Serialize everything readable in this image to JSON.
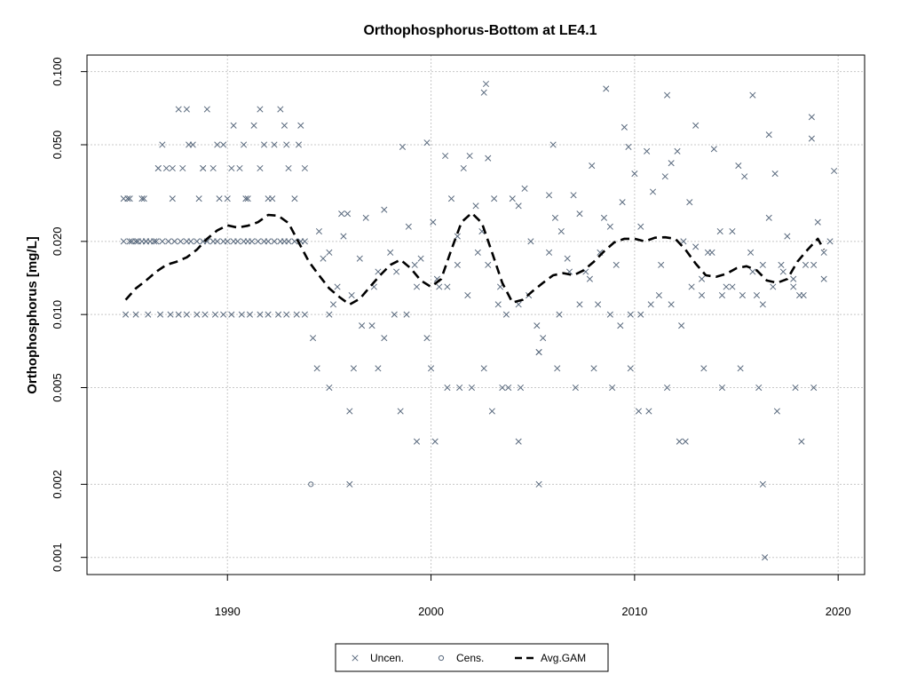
{
  "chart_data": {
    "type": "scatter",
    "title": "Orthophosphorus-Bottom at LE4.1",
    "xlabel": "",
    "ylabel": "Orthophosphorus [mg/L]",
    "y_scale": "log",
    "xlim": [
      1983.1,
      2021.3
    ],
    "ylim": [
      0.00085,
      0.117
    ],
    "grid": true,
    "x_ticks": [
      {
        "value": 1990,
        "label": "1990"
      },
      {
        "value": 2000,
        "label": "2000"
      },
      {
        "value": 2010,
        "label": "2010"
      },
      {
        "value": 2020,
        "label": "2020"
      }
    ],
    "y_ticks": [
      {
        "value": 0.001,
        "label": "0.001"
      },
      {
        "value": 0.002,
        "label": "0.002"
      },
      {
        "value": 0.005,
        "label": "0.005"
      },
      {
        "value": 0.01,
        "label": "0.010"
      },
      {
        "value": 0.02,
        "label": "0.020"
      },
      {
        "value": 0.05,
        "label": "0.050"
      },
      {
        "value": 0.1,
        "label": "0.100"
      }
    ],
    "legend": {
      "position": "bottom",
      "entries": [
        {
          "label": "Uncen.",
          "symbol": "x"
        },
        {
          "label": "Cens.",
          "symbol": "circle"
        },
        {
          "label": "Avg.GAM",
          "symbol": "dashed-line"
        }
      ]
    },
    "colors": {
      "points": "#5a6a7e",
      "gam": "#000000",
      "grid": "#c8c8c8"
    },
    "series": [
      {
        "name": "Uncen.",
        "kind": "points",
        "x": [
          1984.9,
          1985.1,
          1985.3,
          1985.6,
          1985.8,
          1986.0,
          1986.4,
          1986.6,
          1986.8,
          1987.0,
          1987.3,
          1987.6,
          1987.8,
          1988.0,
          1988.3,
          1988.6,
          1988.8,
          1989.0,
          1989.3,
          1989.6,
          1989.8,
          1990.0,
          1990.3,
          1990.6,
          1990.8,
          1991.0,
          1991.3,
          1991.6,
          1991.8,
          1992.0,
          1992.3,
          1992.6,
          1992.8,
          1993.0,
          1993.3,
          1993.6,
          1993.8,
          1984.9,
          1985.2,
          1985.5,
          1985.8,
          1986.0,
          1986.2,
          1986.5,
          1986.8,
          1987.1,
          1987.4,
          1987.7,
          1988.0,
          1988.2,
          1988.5,
          1988.8,
          1989.0,
          1989.3,
          1989.5,
          1989.8,
          1990.0,
          1990.3,
          1990.5,
          1990.8,
          1991.0,
          1991.2,
          1991.5,
          1991.8,
          1992.0,
          1992.3,
          1992.6,
          1992.8,
          1993.0,
          1993.3,
          1993.6,
          1993.8,
          1985.0,
          1985.5,
          1986.1,
          1986.7,
          1987.2,
          1987.6,
          1988.0,
          1988.5,
          1988.9,
          1989.4,
          1989.8,
          1990.2,
          1990.7,
          1991.1,
          1991.6,
          1992.0,
          1992.5,
          1992.9,
          1993.4,
          1993.8,
          1985.2,
          1985.9,
          1986.6,
          1987.3,
          1988.1,
          1988.8,
          1989.5,
          1990.2,
          1990.9,
          1991.6,
          1992.2,
          1992.9,
          1993.5,
          1994.2,
          1994.4,
          1994.7,
          1995.0,
          1995.2,
          1995.4,
          1995.7,
          1995.9,
          1996.2,
          1996.5,
          1996.8,
          1997.1,
          1997.4,
          1997.7,
          1998.0,
          1998.3,
          1998.6,
          1998.9,
          1999.2,
          1999.5,
          1999.8,
          2000.1,
          2000.4,
          2000.7,
          2001.0,
          2001.3,
          2001.6,
          2001.9,
          2002.2,
          2002.5,
          2002.8,
          2003.1,
          2003.4,
          2003.7,
          2004.0,
          2004.3,
          2004.6,
          2004.9,
          2005.2,
          2005.5,
          2005.8,
          2006.1,
          2006.4,
          2006.7,
          2007.0,
          2007.3,
          2007.6,
          2007.9,
          2008.2,
          2008.5,
          2008.8,
          2009.1,
          2009.4,
          2009.7,
          2010.0,
          2010.3,
          2010.6,
          2010.9,
          2011.2,
          2011.5,
          2011.8,
          2012.1,
          2012.4,
          2012.7,
          2013.0,
          2013.3,
          2013.6,
          2013.9,
          2014.2,
          2014.5,
          2014.8,
          2015.1,
          2015.4,
          2015.7,
          2016.0,
          2016.3,
          2016.6,
          2016.9,
          2017.2,
          2017.5,
          2017.8,
          2018.1,
          2018.4,
          2018.7,
          2019.0,
          2019.3,
          2019.6,
          2019.8,
          1994.5,
          1995.0,
          1995.6,
          1996.1,
          1996.6,
          1997.2,
          1997.7,
          1998.2,
          1998.8,
          1999.3,
          1999.8,
          2000.3,
          2000.8,
          2001.3,
          2001.8,
          2002.3,
          2002.8,
          2003.3,
          2003.8,
          2004.3,
          2004.8,
          2005.3,
          2005.8,
          2006.3,
          2006.8,
          2007.3,
          2007.8,
          2008.3,
          2008.8,
          2009.3,
          2009.8,
          2010.3,
          2010.8,
          2011.3,
          2011.8,
          2012.3,
          2012.8,
          2013.3,
          2013.8,
          2014.3,
          2014.8,
          2015.3,
          2015.8,
          2016.3,
          2016.8,
          2017.3,
          2017.8,
          2018.3,
          2018.8,
          2019.3,
          1995.0,
          1996.0,
          1997.4,
          1998.5,
          2000.0,
          2000.8,
          2001.4,
          2002.0,
          2002.6,
          2003.5,
          2004.4,
          2005.3,
          2006.2,
          2007.1,
          2008.0,
          2008.9,
          2009.8,
          2010.7,
          2011.6,
          2012.5,
          2013.4,
          2014.3,
          2015.2,
          2016.1,
          2017.0,
          2017.9,
          2018.8,
          1996.0,
          1999.3,
          2000.2,
          2003.0,
          2004.3,
          2005.3,
          2010.2,
          2012.2,
          2016.3,
          2016.4,
          2018.2,
          2002.6,
          2002.7,
          2008.6,
          2011.6,
          2015.8,
          2009.5,
          2006.0,
          2013.0,
          2016.6,
          2018.7
        ],
        "y": [
          0.03,
          0.03,
          0.02,
          0.02,
          0.03,
          0.02,
          0.02,
          0.04,
          0.05,
          0.04,
          0.03,
          0.07,
          0.04,
          0.07,
          0.05,
          0.03,
          0.04,
          0.07,
          0.04,
          0.03,
          0.05,
          0.03,
          0.06,
          0.04,
          0.05,
          0.03,
          0.06,
          0.07,
          0.05,
          0.03,
          0.05,
          0.07,
          0.06,
          0.04,
          0.03,
          0.06,
          0.04,
          0.02,
          0.02,
          0.02,
          0.02,
          0.02,
          0.02,
          0.02,
          0.02,
          0.02,
          0.02,
          0.02,
          0.02,
          0.02,
          0.02,
          0.02,
          0.02,
          0.02,
          0.02,
          0.02,
          0.02,
          0.02,
          0.02,
          0.02,
          0.02,
          0.02,
          0.02,
          0.02,
          0.02,
          0.02,
          0.02,
          0.02,
          0.02,
          0.02,
          0.02,
          0.02,
          0.01,
          0.01,
          0.01,
          0.01,
          0.01,
          0.01,
          0.01,
          0.01,
          0.01,
          0.01,
          0.01,
          0.01,
          0.01,
          0.01,
          0.01,
          0.01,
          0.01,
          0.01,
          0.01,
          0.01,
          0.03,
          0.03,
          0.04,
          0.04,
          0.05,
          0.04,
          0.05,
          0.04,
          0.03,
          0.04,
          0.03,
          0.05,
          0.05,
          0.008,
          0.006,
          0.017,
          0.018,
          0.011,
          0.013,
          0.021,
          0.026,
          0.006,
          0.017,
          0.025,
          0.009,
          0.015,
          0.027,
          0.018,
          0.015,
          0.049,
          0.023,
          0.016,
          0.017,
          0.051,
          0.024,
          0.013,
          0.045,
          0.03,
          0.016,
          0.04,
          0.045,
          0.028,
          0.022,
          0.016,
          0.03,
          0.013,
          0.01,
          0.03,
          0.028,
          0.033,
          0.02,
          0.009,
          0.008,
          0.031,
          0.025,
          0.022,
          0.017,
          0.031,
          0.026,
          0.015,
          0.041,
          0.011,
          0.025,
          0.023,
          0.016,
          0.029,
          0.049,
          0.038,
          0.023,
          0.047,
          0.032,
          0.012,
          0.037,
          0.042,
          0.047,
          0.02,
          0.029,
          0.019,
          0.014,
          0.018,
          0.048,
          0.022,
          0.013,
          0.022,
          0.041,
          0.037,
          0.018,
          0.012,
          0.016,
          0.025,
          0.038,
          0.016,
          0.021,
          0.014,
          0.012,
          0.016,
          0.053,
          0.024,
          0.014,
          0.02,
          0.039,
          0.022,
          0.01,
          0.026,
          0.012,
          0.009,
          0.013,
          0.008,
          0.01,
          0.01,
          0.013,
          0.008,
          0.014,
          0.013,
          0.021,
          0.012,
          0.018,
          0.044,
          0.011,
          0.005,
          0.011,
          0.012,
          0.007,
          0.018,
          0.01,
          0.015,
          0.011,
          0.014,
          0.018,
          0.01,
          0.009,
          0.01,
          0.01,
          0.011,
          0.016,
          0.011,
          0.009,
          0.013,
          0.012,
          0.018,
          0.012,
          0.013,
          0.012,
          0.015,
          0.011,
          0.013,
          0.015,
          0.013,
          0.012,
          0.016,
          0.018,
          0.005,
          0.004,
          0.006,
          0.004,
          0.006,
          0.005,
          0.005,
          0.005,
          0.006,
          0.005,
          0.005,
          0.007,
          0.006,
          0.005,
          0.006,
          0.005,
          0.006,
          0.004,
          0.005,
          0.003,
          0.006,
          0.005,
          0.006,
          0.005,
          0.004,
          0.005,
          0.005,
          0.002,
          0.003,
          0.003,
          0.004,
          0.003,
          0.002,
          0.004,
          0.003,
          0.002,
          0.001,
          0.003,
          0.082,
          0.089,
          0.085,
          0.08,
          0.08,
          0.059,
          0.05,
          0.06,
          0.055,
          0.065
        ]
      },
      {
        "name": "Cens.",
        "kind": "points",
        "x": [
          1994.1
        ],
        "y": [
          0.002
        ]
      },
      {
        "name": "Avg.GAM",
        "kind": "line",
        "x": [
          1985.0,
          1985.5,
          1986.0,
          1986.5,
          1987.0,
          1987.5,
          1988.0,
          1988.5,
          1989.0,
          1989.5,
          1990.0,
          1990.5,
          1991.0,
          1991.5,
          1992.0,
          1992.5,
          1993.0,
          1993.5,
          1994.0,
          1994.5,
          1995.0,
          1995.5,
          1996.0,
          1996.5,
          1997.0,
          1997.5,
          1998.0,
          1998.5,
          1999.0,
          1999.5,
          2000.0,
          2000.5,
          2001.0,
          2001.5,
          2002.0,
          2002.5,
          2003.0,
          2003.5,
          2004.0,
          2004.5,
          2005.0,
          2005.5,
          2006.0,
          2006.5,
          2007.0,
          2007.5,
          2008.0,
          2008.5,
          2009.0,
          2009.5,
          2010.0,
          2010.5,
          2011.0,
          2011.5,
          2012.0,
          2012.5,
          2013.0,
          2013.5,
          2014.0,
          2014.5,
          2015.0,
          2015.5,
          2016.0,
          2016.5,
          2017.0,
          2017.5,
          2018.0,
          2018.5,
          2019.0,
          2019.3
        ],
        "y": [
          0.0115,
          0.0128,
          0.0138,
          0.015,
          0.016,
          0.0165,
          0.0172,
          0.0185,
          0.0205,
          0.0222,
          0.0233,
          0.0228,
          0.0232,
          0.024,
          0.0257,
          0.0255,
          0.0238,
          0.0198,
          0.0165,
          0.0145,
          0.0128,
          0.0118,
          0.011,
          0.0116,
          0.013,
          0.0145,
          0.016,
          0.0168,
          0.0155,
          0.0138,
          0.013,
          0.014,
          0.0185,
          0.024,
          0.0262,
          0.0238,
          0.018,
          0.0135,
          0.0112,
          0.0115,
          0.0125,
          0.0135,
          0.0145,
          0.0148,
          0.0145,
          0.0152,
          0.0165,
          0.0182,
          0.0198,
          0.0205,
          0.0205,
          0.02,
          0.0207,
          0.0208,
          0.0205,
          0.0185,
          0.0162,
          0.0145,
          0.0143,
          0.0147,
          0.0155,
          0.0158,
          0.0152,
          0.0138,
          0.0135,
          0.014,
          0.0165,
          0.0185,
          0.0205,
          0.0185
        ]
      }
    ]
  }
}
